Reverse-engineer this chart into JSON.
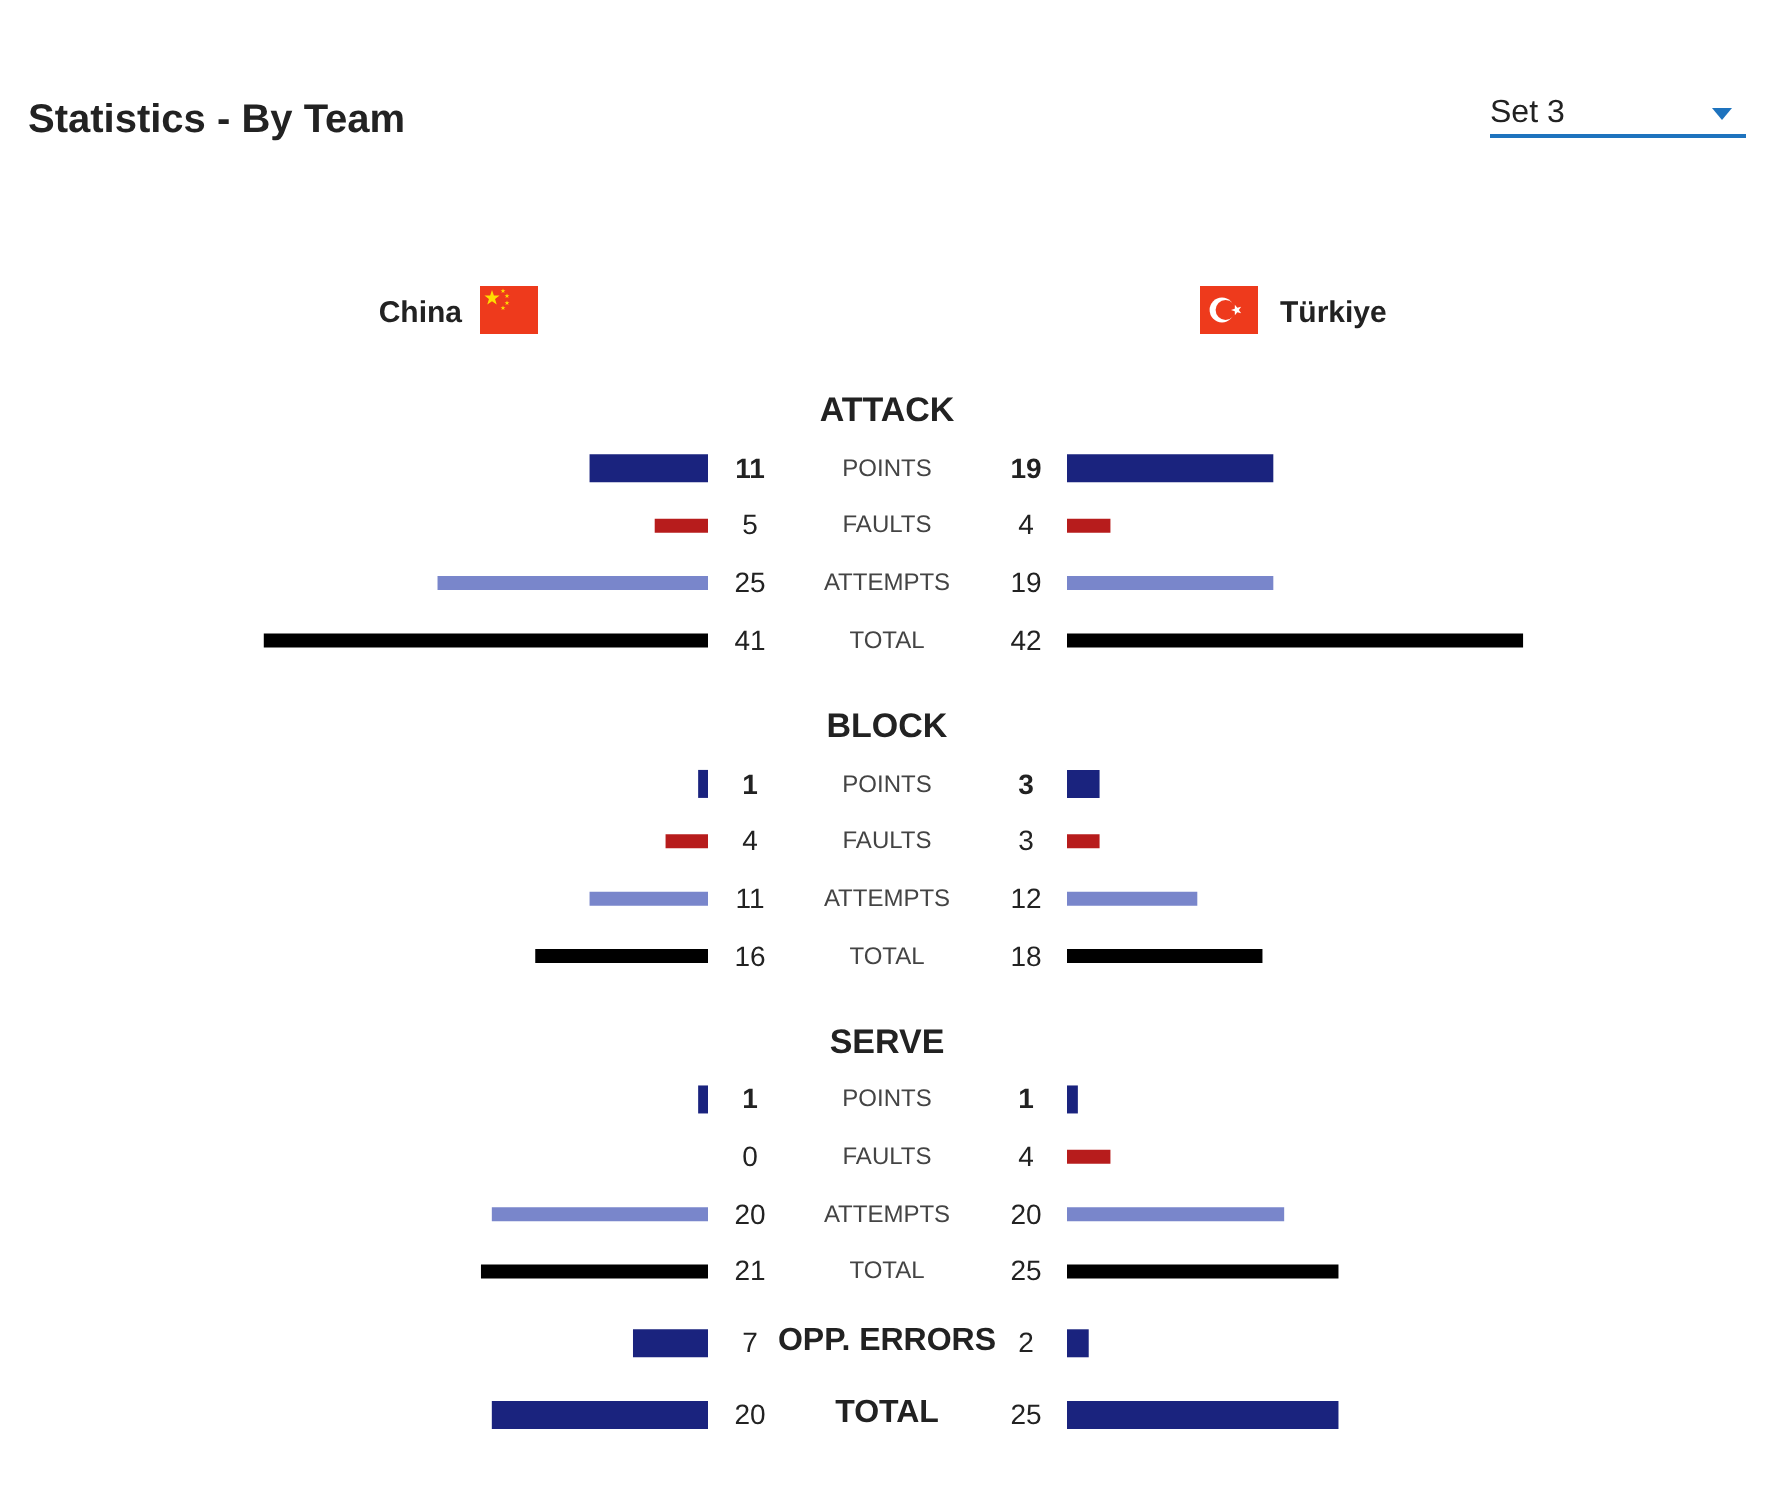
{
  "chart_data": [
    {
      "type": "other",
      "title": "Statistics - By Team",
      "annotations": [
        "Set 3"
      ]
    },
    {
      "type": "bar",
      "orientation": "horizontal",
      "title": "China",
      "categories": [
        "ATTACK",
        "POINTS",
        "FAULTS",
        "ATTEMPTS",
        "TOTAL",
        "BLOCK",
        "POINTS",
        "FAULTS",
        "ATTEMPTS",
        "TOTAL",
        "SERVE",
        "POINTS",
        "FAULTS",
        "ATTEMPTS",
        "TOTAL",
        "OPP. ERRORS",
        "TOTAL"
      ],
      "values": [
        null,
        11,
        5,
        25,
        41,
        null,
        1,
        4,
        11,
        16,
        null,
        1,
        0,
        20,
        21,
        7,
        20
      ],
      "colors": [
        null,
        "#1a237e",
        "#b71c1c",
        "#7986cb",
        "#000000",
        null,
        "#1a237e",
        "#b71c1c",
        "#7986cb",
        "#000000",
        null,
        "#1a237e",
        "#b71c1c",
        "#7986cb",
        "#000000",
        "#1a237e",
        "#1a237e"
      ],
      "data_labels": true,
      "tick_labels": "y"
    },
    {
      "type": "bar",
      "orientation": "horizontal",
      "title": "Türkiye",
      "categories": [
        "ATTACK",
        "POINTS",
        "FAULTS",
        "ATTEMPTS",
        "TOTAL",
        "BLOCK",
        "POINTS",
        "FAULTS",
        "ATTEMPTS",
        "TOTAL",
        "SERVE",
        "POINTS",
        "FAULTS",
        "ATTEMPTS",
        "TOTAL",
        "OPP. ERRORS",
        "TOTAL"
      ],
      "values": [
        null,
        19,
        4,
        19,
        42,
        null,
        3,
        3,
        12,
        18,
        null,
        1,
        4,
        20,
        25,
        2,
        25
      ],
      "colors": [
        null,
        "#1a237e",
        "#b71c1c",
        "#7986cb",
        "#000000",
        null,
        "#1a237e",
        "#b71c1c",
        "#7986cb",
        "#000000",
        null,
        "#1a237e",
        "#b71c1c",
        "#7986cb",
        "#000000",
        "#1a237e",
        "#1a237e"
      ],
      "data_labels": true,
      "tick_labels": false
    }
  ]
}
